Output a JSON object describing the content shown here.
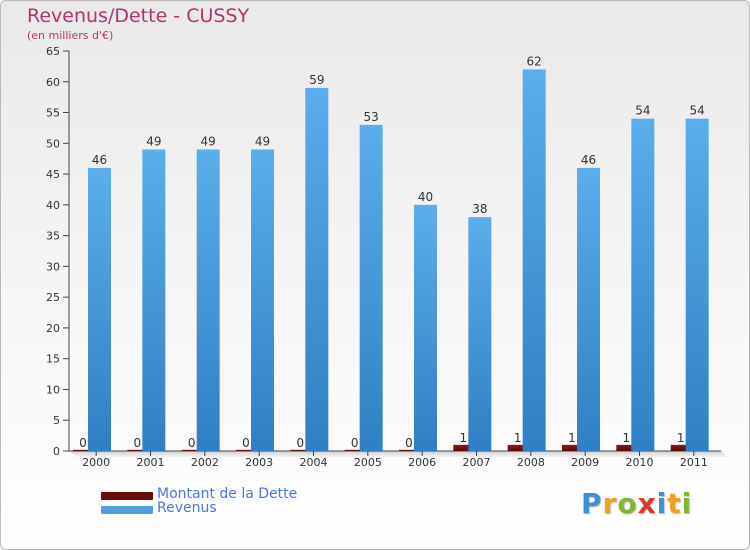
{
  "header": {
    "title": "Revenus/Dette - CUSSY",
    "subtitle": "(en milliers d'€)"
  },
  "legend": {
    "items": [
      {
        "label": "Montant de la Dette",
        "color": "#6a0d0d"
      },
      {
        "label": "Revenus",
        "color": "#4d9fe0"
      }
    ]
  },
  "logo": {
    "letters": [
      {
        "char": "P",
        "color": "#3a8fd6"
      },
      {
        "char": "r",
        "color": "#f0a020"
      },
      {
        "char": "o",
        "color": "#7cbb2c"
      },
      {
        "char": "x",
        "color": "#d93a2b"
      },
      {
        "char": "i",
        "color": "#3a8fd6"
      },
      {
        "char": "t",
        "color": "#f0a020"
      },
      {
        "char": "i",
        "color": "#7cbb2c"
      }
    ]
  },
  "chart_data": {
    "type": "bar",
    "categories": [
      "2000",
      "2001",
      "2002",
      "2003",
      "2004",
      "2005",
      "2006",
      "2007",
      "2008",
      "2009",
      "2010",
      "2011"
    ],
    "series": [
      {
        "name": "Montant de la Dette",
        "color": "#6a0d0d",
        "values": [
          0,
          0,
          0,
          0,
          0,
          0,
          0,
          1,
          1,
          1,
          1,
          1
        ]
      },
      {
        "name": "Revenus",
        "color": "#4d9fe0",
        "values": [
          46,
          49,
          49,
          49,
          59,
          53,
          40,
          38,
          62,
          46,
          54,
          54
        ]
      }
    ],
    "yticks": [
      0,
      5,
      10,
      15,
      20,
      25,
      30,
      35,
      40,
      45,
      50,
      55,
      60,
      65
    ],
    "ylim": [
      0,
      65
    ],
    "grid": false,
    "legend_position": "bottom-left"
  }
}
